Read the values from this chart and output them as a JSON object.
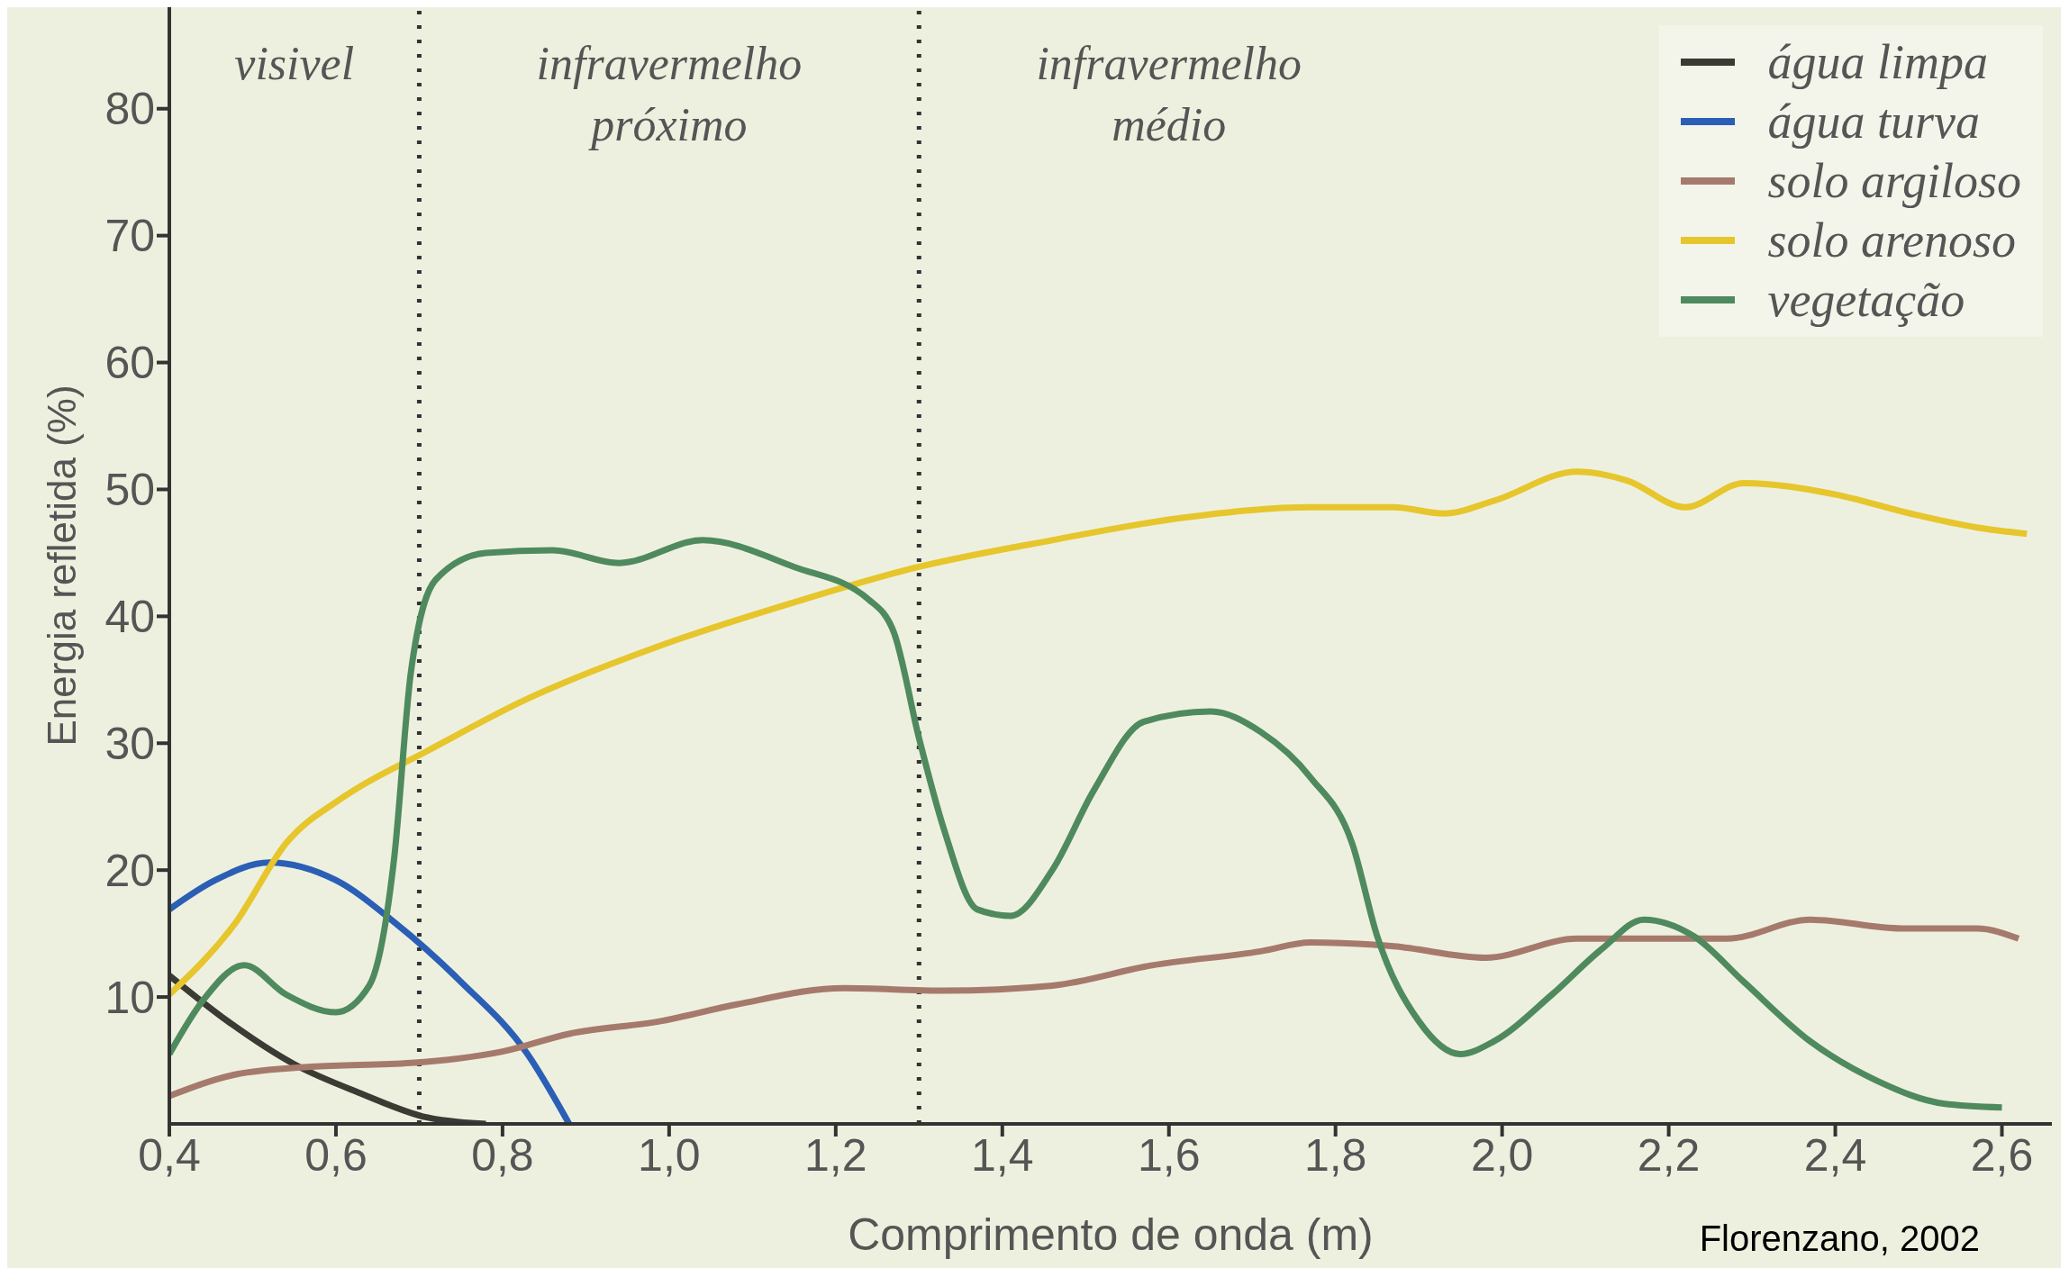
{
  "chart_data": {
    "type": "line",
    "xlabel": "Comprimento de onda (m)",
    "ylabel": "Energia refletida (%)",
    "xlim": [
      0.4,
      2.66
    ],
    "ylim": [
      0,
      88
    ],
    "xticks": [
      {
        "value": 0.4,
        "label": "0,4"
      },
      {
        "value": 0.6,
        "label": "0,6"
      },
      {
        "value": 0.8,
        "label": "0,8"
      },
      {
        "value": 1.0,
        "label": "1,0"
      },
      {
        "value": 1.2,
        "label": "1,2"
      },
      {
        "value": 1.4,
        "label": "1,4"
      },
      {
        "value": 1.6,
        "label": "1,6"
      },
      {
        "value": 1.8,
        "label": "1,8"
      },
      {
        "value": 2.0,
        "label": "2,0"
      },
      {
        "value": 2.2,
        "label": "2,2"
      },
      {
        "value": 2.4,
        "label": "2,4"
      },
      {
        "value": 2.6,
        "label": "2,6"
      }
    ],
    "yticks": [
      10,
      20,
      30,
      40,
      50,
      60,
      70,
      80
    ],
    "legend": "top right",
    "marker": "none",
    "line_style": "solid",
    "series": [
      {
        "name": "água limpa",
        "color": "#3b3a33",
        "x": [
          0.4,
          0.47,
          0.55,
          0.63,
          0.71,
          0.78
        ],
        "values": [
          11.7,
          8.1,
          4.7,
          2.4,
          0.5,
          0
        ]
      },
      {
        "name": "água turva",
        "color": "#2a5fb5",
        "x": [
          0.4,
          0.455,
          0.52,
          0.6,
          0.67,
          0.75,
          0.83,
          0.88
        ],
        "values": [
          16.9,
          19.2,
          20.6,
          19.2,
          15.9,
          11.2,
          5.5,
          0
        ]
      },
      {
        "name": "solo argiloso",
        "color": "#a57a6c",
        "x": [
          0.4,
          0.48,
          0.57,
          0.69,
          0.8,
          0.88,
          0.99,
          1.08,
          1.21,
          1.33,
          1.46,
          1.58,
          1.71,
          1.77,
          1.87,
          1.98,
          2.09,
          2.2,
          2.27,
          2.37,
          2.48,
          2.57,
          2.62
        ],
        "values": [
          2.2,
          3.9,
          4.5,
          4.8,
          5.7,
          7.1,
          8.1,
          9.4,
          10.7,
          10.5,
          10.9,
          12.5,
          13.6,
          14.3,
          14,
          13.1,
          14.6,
          14.6,
          14.6,
          16.1,
          15.4,
          15.4,
          14.6
        ]
      },
      {
        "name": "solo arenoso",
        "color": "#e6c62c",
        "x": [
          0.4,
          0.48,
          0.54,
          0.61,
          0.71,
          0.83,
          0.99,
          1.15,
          1.3,
          1.46,
          1.62,
          1.77,
          1.87,
          1.93,
          1.99,
          2.09,
          2.15,
          2.22,
          2.29,
          2.4,
          2.49,
          2.57,
          2.63
        ],
        "values": [
          10.2,
          15.9,
          22.1,
          25.8,
          29.4,
          33.5,
          37.7,
          41.1,
          43.9,
          46,
          47.8,
          48.6,
          48.6,
          48.1,
          49.1,
          51.4,
          50.7,
          48.6,
          50.5,
          49.6,
          48.1,
          47,
          46.5
        ]
      },
      {
        "name": "vegetação",
        "color": "#4f8a5e",
        "x": [
          0.4,
          0.44,
          0.49,
          0.54,
          0.6,
          0.64,
          0.67,
          0.69,
          0.72,
          0.78,
          0.86,
          0.94,
          1.04,
          1.15,
          1.24,
          1.27,
          1.3,
          1.33,
          1.37,
          1.41,
          1.46,
          1.51,
          1.57,
          1.65,
          1.71,
          1.77,
          1.82,
          1.85,
          1.9,
          1.95,
          1.99,
          2.06,
          2.12,
          2.17,
          2.23,
          2.29,
          2.37,
          2.45,
          2.53,
          2.6
        ],
        "values": [
          5.5,
          9.7,
          12.5,
          10.2,
          8.8,
          10.9,
          21,
          35.6,
          42.9,
          45,
          45.2,
          44.2,
          46,
          43.9,
          41.3,
          38.7,
          30.4,
          23.2,
          16.9,
          16.4,
          20,
          26.3,
          31.7,
          32.5,
          30.9,
          27.3,
          22.1,
          14.8,
          8.1,
          5.5,
          6.5,
          10.2,
          13.8,
          16.1,
          14.8,
          11.2,
          6.5,
          3.4,
          1.6,
          1.3
        ]
      }
    ],
    "ref_lines": [
      {
        "axis": "x",
        "value": 0.7,
        "line_style": "dotted",
        "color": "#333333"
      },
      {
        "axis": "x",
        "value": 1.3,
        "line_style": "dotted",
        "color": "#333333"
      }
    ],
    "annotations": [
      "visivel",
      "infravermelho próximo",
      "infravermelho médio",
      "Florenzano, 2002"
    ]
  }
}
